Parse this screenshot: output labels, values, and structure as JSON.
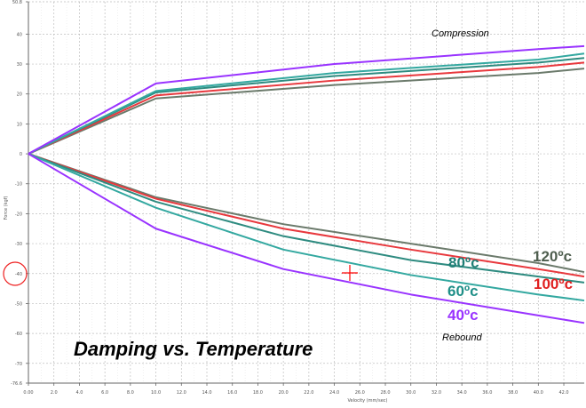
{
  "chart_data": {
    "type": "line",
    "title": "Damping vs. Temperature",
    "xlabel": "Velocity (mm/sec)",
    "ylabel": "Force (kgf)",
    "xlim": [
      0,
      43.6
    ],
    "ylim": [
      -76.6,
      50.8
    ],
    "x_ticks": [
      "0.00",
      "2.0",
      "4.0",
      "6.0",
      "8.0",
      "10.0",
      "12.0",
      "14.0",
      "16.0",
      "18.0",
      "20.0",
      "22.0",
      "24.0",
      "26.0",
      "28.0",
      "30.0",
      "32.0",
      "34.0",
      "36.0",
      "38.0",
      "40.0",
      "42.0"
    ],
    "y_ticks": [
      "50.8",
      "40",
      "30",
      "20",
      "10",
      "0",
      "-10",
      "-20",
      "-30",
      "-40",
      "-50",
      "-60",
      "-70",
      "-76.6"
    ],
    "grid": true,
    "annotations": {
      "compression": "Compression",
      "rebound": "Rebound"
    },
    "series": [
      {
        "name": "40ºc",
        "color": "#9933ff",
        "compression": {
          "x": [
            0,
            10,
            24,
            40,
            43.6
          ],
          "y": [
            0,
            23.5,
            30,
            35,
            36
          ]
        },
        "rebound": {
          "x": [
            0,
            10,
            20,
            30,
            40,
            43.6
          ],
          "y": [
            0,
            -25,
            -38.5,
            -47,
            -54,
            -56.5
          ]
        }
      },
      {
        "name": "60ºc",
        "color": "#33a8a0",
        "compression": {
          "x": [
            0,
            10,
            24,
            40,
            43.6
          ],
          "y": [
            0,
            21,
            27,
            31.5,
            33.5
          ]
        },
        "rebound": {
          "x": [
            0,
            10,
            20,
            30,
            40,
            43.6
          ],
          "y": [
            0,
            -18,
            -32,
            -40.5,
            -47,
            -49
          ]
        }
      },
      {
        "name": "80ºc",
        "color": "#2e8b80",
        "compression": {
          "x": [
            0,
            10,
            24,
            40,
            43.6
          ],
          "y": [
            0,
            20.5,
            26,
            30.5,
            32
          ]
        },
        "rebound": {
          "x": [
            0,
            10,
            20,
            30,
            40,
            43.6
          ],
          "y": [
            0,
            -16,
            -27.5,
            -35.5,
            -41,
            -43
          ]
        }
      },
      {
        "name": "100ºc",
        "color": "#e8383d",
        "compression": {
          "x": [
            0,
            10,
            24,
            40,
            43.6
          ],
          "y": [
            0,
            19.5,
            24.5,
            29,
            30.5
          ]
        },
        "rebound": {
          "x": [
            0,
            10,
            20,
            30,
            40,
            43.6
          ],
          "y": [
            0,
            -15,
            -25,
            -32,
            -38.5,
            -41
          ]
        }
      },
      {
        "name": "120ºc",
        "color": "#6b7a6b",
        "compression": {
          "x": [
            0,
            10,
            24,
            40,
            43.6
          ],
          "y": [
            0,
            18.5,
            23,
            27,
            28.5
          ]
        },
        "rebound": {
          "x": [
            0,
            10,
            20,
            30,
            40,
            43.6
          ],
          "y": [
            0,
            -14.5,
            -23.5,
            -30,
            -36.5,
            -39.5
          ]
        }
      }
    ],
    "label_colors": {
      "40ºc": "#9933ff",
      "60ºc": "#1f8f88",
      "80ºc": "#1f7f76",
      "100ºc": "#e02020",
      "120ºc": "#4f5f4f"
    },
    "marker_color": "#ff0000"
  }
}
